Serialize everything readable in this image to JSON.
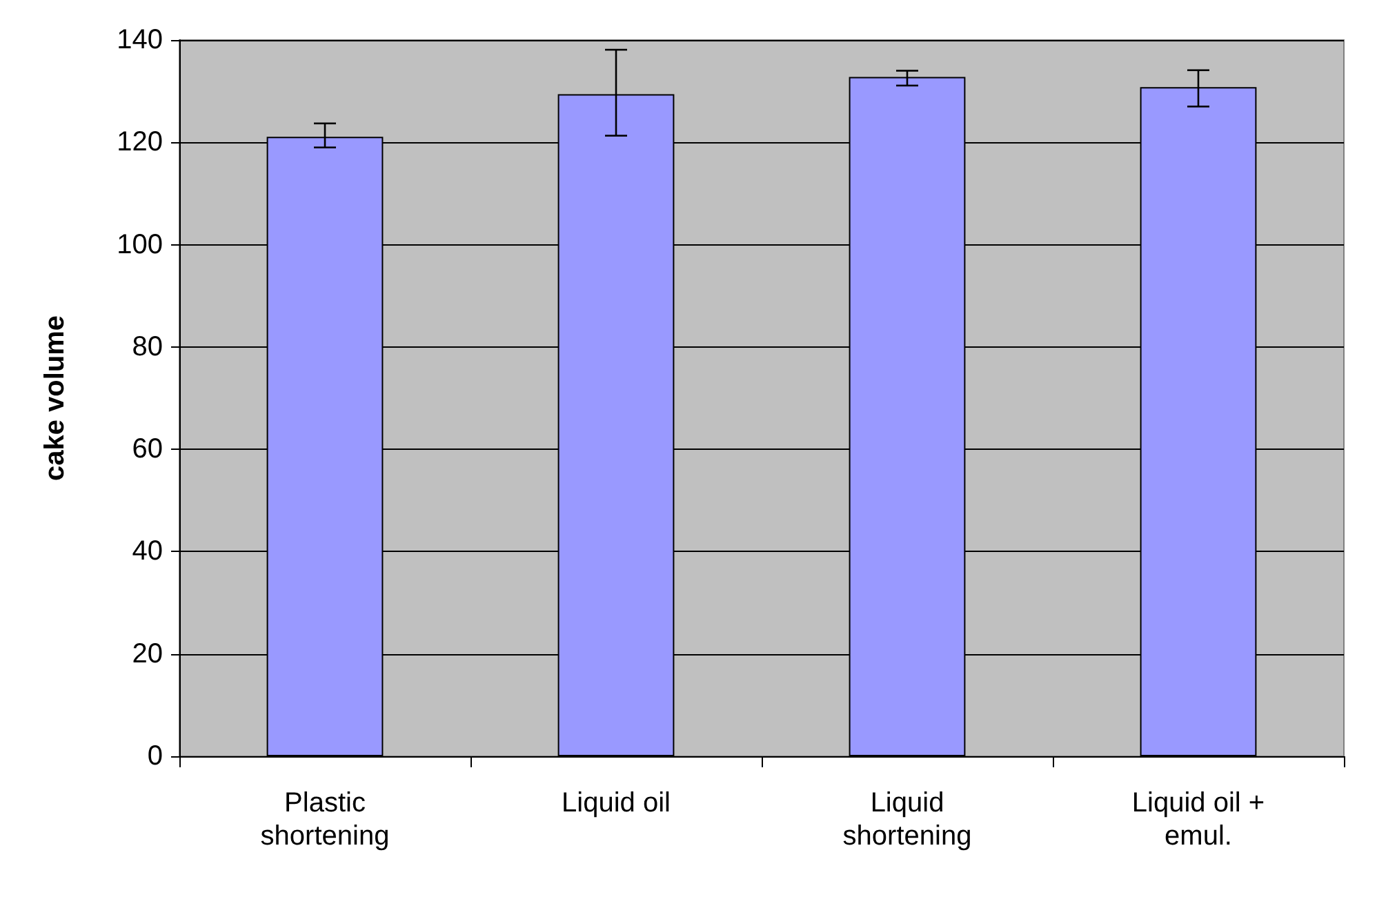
{
  "chart_data": {
    "type": "bar",
    "ylabel": "cake volume",
    "categories": [
      "Plastic\nshortening",
      "Liquid oil",
      "Liquid\nshortening",
      "Liquid oil +\nemul."
    ],
    "values": [
      121.1,
      129.4,
      132.8,
      130.8
    ],
    "errors": [
      [
        119,
        123.7
      ],
      [
        121.3,
        138.1
      ],
      [
        131.1,
        134
      ],
      [
        127,
        134.1
      ]
    ],
    "color": "#9999ff",
    "ylim": [
      0,
      140
    ],
    "yticks": [
      0,
      20,
      40,
      60,
      80,
      100,
      120,
      140
    ],
    "grid": "y"
  }
}
